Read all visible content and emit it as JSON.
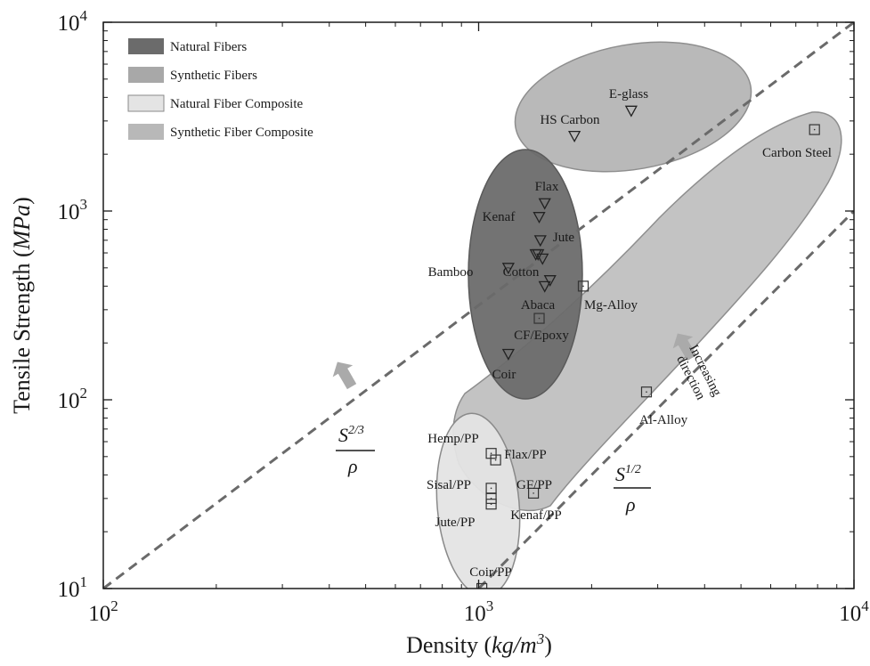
{
  "chart_data": {
    "type": "scatter",
    "x_scale": "log",
    "y_scale": "log",
    "xlim": [
      100,
      10000
    ],
    "ylim": [
      10,
      10000
    ],
    "xlabel": {
      "prefix": "Density (",
      "unit": "kg/m",
      "sup": "3",
      "suffix": ")"
    },
    "ylabel": {
      "prefix": "Tensile Strength (",
      "unit": "MPa",
      "suffix": ")"
    },
    "x_ticks": [
      {
        "value": 100,
        "base": "10",
        "exp": "2"
      },
      {
        "value": 1000,
        "base": "10",
        "exp": "3"
      },
      {
        "value": 10000,
        "base": "10",
        "exp": "4"
      }
    ],
    "y_ticks": [
      {
        "value": 10,
        "base": "10",
        "exp": "1"
      },
      {
        "value": 100,
        "base": "10",
        "exp": "2"
      },
      {
        "value": 1000,
        "base": "10",
        "exp": "3"
      },
      {
        "value": 10000,
        "base": "10",
        "exp": "4"
      }
    ],
    "grid": false,
    "legend_position": "top-left",
    "legend": [
      {
        "label": "Natural Fibers",
        "fill": "#6b6b6b"
      },
      {
        "label": "Synthetic Fibers",
        "fill": "#a8a8a8"
      },
      {
        "label": "Natural Fiber Composite",
        "fill": "#e4e4e4"
      },
      {
        "label": "Synthetic Fiber Composite",
        "fill": "#b8b8b8"
      }
    ],
    "series": [
      {
        "name": "Natural Fibers",
        "marker": "triangle-down",
        "points": [
          {
            "label": "Flax",
            "x": 1500,
            "y": 1100
          },
          {
            "label": "Kenaf",
            "x": 1450,
            "y": 930
          },
          {
            "label": "Jute",
            "x": 1460,
            "y": 700
          },
          {
            "label": "",
            "x": 1420,
            "y": 590
          },
          {
            "label": "",
            "x": 1440,
            "y": 590
          },
          {
            "label": "",
            "x": 1480,
            "y": 560
          },
          {
            "label": "Bamboo",
            "x": 1200,
            "y": 500
          },
          {
            "label": "Cotton",
            "x": 1550,
            "y": 430
          },
          {
            "label": "Abaca",
            "x": 1500,
            "y": 400
          },
          {
            "label": "Coir",
            "x": 1200,
            "y": 175
          }
        ]
      },
      {
        "name": "Synthetic Fibers",
        "marker": "triangle-down",
        "points": [
          {
            "label": "E-glass",
            "x": 2550,
            "y": 3400
          },
          {
            "label": "HS Carbon",
            "x": 1800,
            "y": 2500
          }
        ]
      },
      {
        "name": "Natural Fiber Composite",
        "marker": "square",
        "points": [
          {
            "label": "Hemp/PP",
            "x": 1080,
            "y": 52
          },
          {
            "label": "Flax/PP",
            "x": 1110,
            "y": 48
          },
          {
            "label": "Sisal/PP",
            "x": 1080,
            "y": 34
          },
          {
            "label": "Kenaf/PP",
            "x": 1080,
            "y": 30
          },
          {
            "label": "Jute/PP",
            "x": 1080,
            "y": 28
          },
          {
            "label": "Coir/PP",
            "x": 1020,
            "y": 10
          }
        ]
      },
      {
        "name": "Synthetic Fiber Composite",
        "marker": "square",
        "points": [
          {
            "label": "Carbon Steel",
            "x": 7850,
            "y": 2700
          },
          {
            "label": "Mg-Alloy",
            "x": 1900,
            "y": 400
          },
          {
            "label": "CF/Epoxy",
            "x": 1450,
            "y": 270
          },
          {
            "label": "Al-Alloy",
            "x": 2800,
            "y": 110
          },
          {
            "label": "GF/PP",
            "x": 1400,
            "y": 32
          }
        ]
      }
    ],
    "regions": [
      {
        "name": "Synthetic Fibers",
        "fill": "#a8a8a8"
      },
      {
        "name": "Synthetic Fiber Composite",
        "fill": "#b8b8b8"
      },
      {
        "name": "Natural Fibers",
        "fill": "#6b6b6b"
      },
      {
        "name": "Natural Fiber Composite",
        "fill": "#e4e4e4"
      }
    ],
    "guide_lines": [
      {
        "name": "S^(2/3)/rho",
        "slope_log": 1.5,
        "from": [
          100,
          10
        ],
        "to": [
          10000,
          10000
        ]
      },
      {
        "name": "S^(1/2)/rho",
        "slope_log": 2,
        "from": [
          1000,
          10
        ],
        "to": [
          10000,
          1000
        ]
      }
    ],
    "annotations": {
      "slope1": {
        "num": "S",
        "num_sup": "2/3",
        "den": "ρ"
      },
      "slope2": {
        "num": "S",
        "num_sup": "1/2",
        "den": "ρ"
      },
      "direction": {
        "line1": "Increasing",
        "line2": "direction"
      }
    }
  }
}
